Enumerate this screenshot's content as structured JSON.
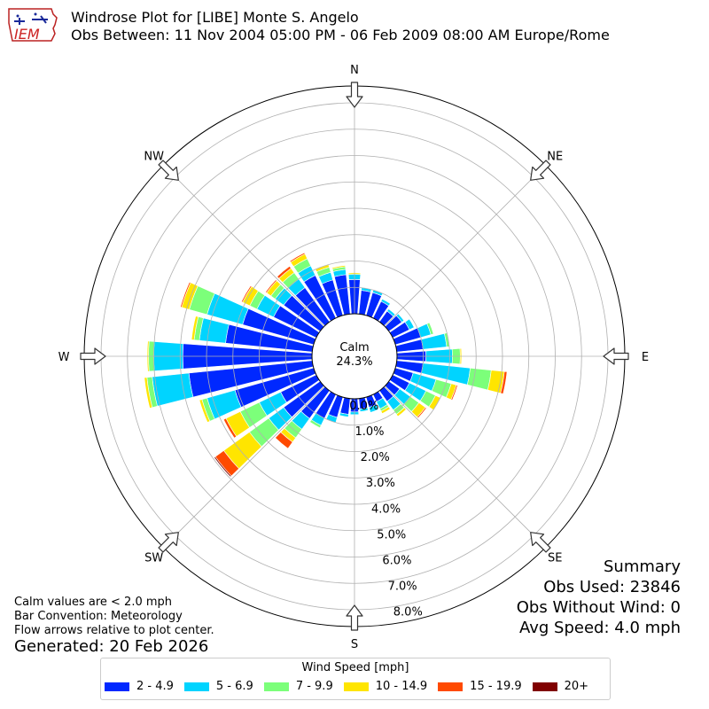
{
  "title_line1": "Windrose Plot for [LIBE] Monte S. Angelo",
  "title_line2": "Obs Between: 11 Nov 2004 05:00 PM - 06 Feb 2009 08:00 AM Europe/Rome",
  "logo_text": "IEM",
  "summary": {
    "heading": "Summary",
    "obs_used": "Obs Used: 23846",
    "obs_without_wind": "Obs Without Wind: 0",
    "avg_speed": "Avg Speed: 4.0 mph"
  },
  "notes": {
    "calm_note": "Calm values are < 2.0 mph",
    "bar_convention": "Bar Convention: Meteorology",
    "flow_arrows": "Flow arrows relative to plot center."
  },
  "generated": "Generated: 20 Feb 2026",
  "colors": [
    "#0028ff",
    "#00d4ff",
    "#7cff7a",
    "#ffe500",
    "#ff4a00",
    "#800000"
  ],
  "chart_data": {
    "type": "windrose",
    "calm_label": "Calm",
    "calm_percent": "24.3%",
    "radial_labels": [
      "0.0%",
      "1.0%",
      "2.0%",
      "3.0%",
      "4.0%",
      "5.0%",
      "6.0%",
      "7.0%",
      "8.0%"
    ],
    "radial_max": 8.0,
    "compass": [
      "N",
      "NE",
      "E",
      "SE",
      "S",
      "SW",
      "W",
      "NW"
    ],
    "legend_title": "Wind Speed [mph]",
    "speed_bins": [
      "2 - 4.9",
      "5 - 6.9",
      "7 - 9.9",
      "10 - 14.9",
      "15 - 19.9",
      "20+"
    ],
    "sector_width_deg": 10,
    "directions_deg": [
      0,
      10,
      20,
      30,
      40,
      50,
      60,
      70,
      80,
      90,
      100,
      110,
      120,
      130,
      140,
      150,
      160,
      170,
      180,
      190,
      200,
      210,
      220,
      230,
      240,
      250,
      260,
      270,
      280,
      290,
      300,
      310,
      320,
      330,
      340,
      350
    ],
    "values": [
      [
        1.3,
        0.2,
        0.0,
        0.05,
        0.0,
        0.0
      ],
      [
        0.9,
        0.1,
        0.0,
        0.0,
        0.0,
        0.0
      ],
      [
        0.9,
        0.1,
        0.0,
        0.0,
        0.0,
        0.0
      ],
      [
        0.7,
        0.1,
        0.0,
        0.0,
        0.0,
        0.0
      ],
      [
        0.5,
        0.1,
        0.0,
        0.0,
        0.0,
        0.0
      ],
      [
        0.6,
        0.1,
        0.0,
        0.0,
        0.0,
        0.0
      ],
      [
        0.7,
        0.2,
        0.0,
        0.0,
        0.0,
        0.0
      ],
      [
        1.0,
        0.4,
        0.1,
        0.0,
        0.0,
        0.0
      ],
      [
        1.0,
        0.9,
        0.1,
        0.0,
        0.0,
        0.0
      ],
      [
        1.1,
        1.0,
        0.3,
        0.05,
        0.0,
        0.0
      ],
      [
        1.0,
        1.8,
        0.8,
        0.5,
        0.1,
        0.0
      ],
      [
        0.7,
        0.9,
        0.6,
        0.2,
        0.05,
        0.0
      ],
      [
        0.7,
        0.7,
        0.4,
        0.2,
        0.0,
        0.0
      ],
      [
        0.5,
        0.5,
        0.4,
        0.3,
        0.05,
        0.0
      ],
      [
        0.5,
        0.4,
        0.2,
        0.1,
        0.0,
        0.0
      ],
      [
        0.3,
        0.3,
        0.1,
        0.1,
        0.0,
        0.0
      ],
      [
        0.4,
        0.2,
        0.0,
        0.0,
        0.0,
        0.0
      ],
      [
        0.4,
        0.1,
        0.0,
        0.0,
        0.0,
        0.0
      ],
      [
        0.5,
        0.1,
        0.0,
        0.0,
        0.0,
        0.0
      ],
      [
        0.6,
        0.1,
        0.0,
        0.0,
        0.0,
        0.0
      ],
      [
        0.8,
        0.2,
        0.0,
        0.0,
        0.0,
        0.0
      ],
      [
        1.0,
        0.3,
        0.1,
        0.0,
        0.0,
        0.0
      ],
      [
        1.3,
        0.5,
        0.4,
        0.2,
        0.3,
        0.0
      ],
      [
        1.7,
        0.7,
        0.9,
        1.2,
        0.4,
        0.05
      ],
      [
        1.5,
        0.9,
        0.8,
        0.6,
        0.1,
        0.0
      ],
      [
        3.1,
        1.1,
        0.2,
        0.1,
        0.0,
        0.0
      ],
      [
        4.7,
        1.4,
        0.2,
        0.1,
        0.0,
        0.0
      ],
      [
        4.9,
        1.1,
        0.2,
        0.05,
        0.0,
        0.0
      ],
      [
        3.3,
        1.0,
        0.2,
        0.1,
        0.0,
        0.0
      ],
      [
        2.8,
        1.4,
        0.7,
        0.3,
        0.05,
        0.0
      ],
      [
        1.8,
        0.7,
        0.3,
        0.3,
        0.05,
        0.0
      ],
      [
        1.7,
        0.4,
        0.2,
        0.2,
        0.05,
        0.0
      ],
      [
        1.6,
        0.4,
        0.3,
        0.2,
        0.1,
        0.0
      ],
      [
        1.8,
        0.4,
        0.3,
        0.2,
        0.05,
        0.0
      ],
      [
        1.4,
        0.3,
        0.2,
        0.1,
        0.0,
        0.0
      ],
      [
        1.5,
        0.2,
        0.1,
        0.05,
        0.0,
        0.0
      ]
    ]
  }
}
